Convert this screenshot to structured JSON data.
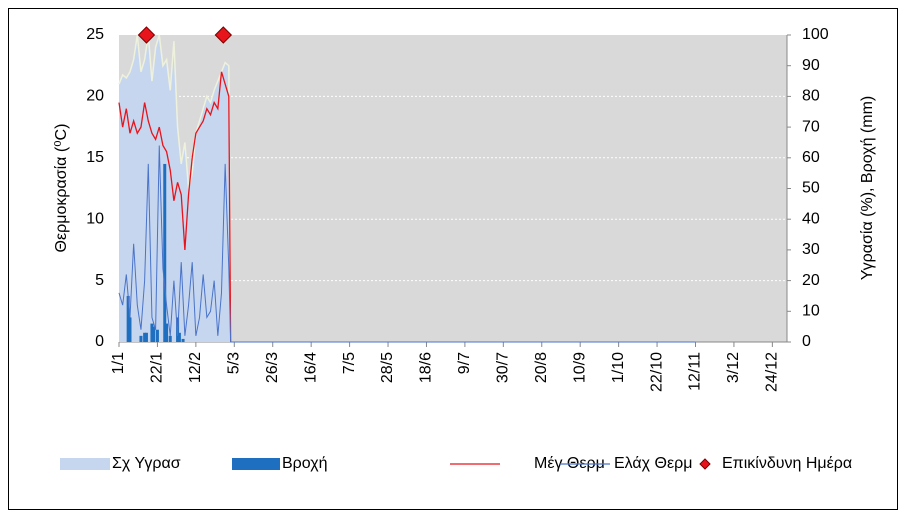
{
  "chart_data": {
    "type": "combo",
    "y_label": "Θερμοκρασία (⁰C)",
    "y2_label": "Υγρασία (%), Βροχή (mm)",
    "xlim": [
      0,
      365
    ],
    "xticks": [
      {
        "value": 0,
        "label": "1/1"
      },
      {
        "value": 21,
        "label": "22/1"
      },
      {
        "value": 42,
        "label": "12/2"
      },
      {
        "value": 63,
        "label": "5/3"
      },
      {
        "value": 84,
        "label": "26/3"
      },
      {
        "value": 105,
        "label": "16/4"
      },
      {
        "value": 126,
        "label": "7/5"
      },
      {
        "value": 147,
        "label": "28/5"
      },
      {
        "value": 168,
        "label": "18/6"
      },
      {
        "value": 189,
        "label": "9/7"
      },
      {
        "value": 210,
        "label": "30/7"
      },
      {
        "value": 231,
        "label": "20/8"
      },
      {
        "value": 252,
        "label": "10/9"
      },
      {
        "value": 273,
        "label": "1/10"
      },
      {
        "value": 294,
        "label": "22/10"
      },
      {
        "value": 315,
        "label": "12/11"
      },
      {
        "value": 336,
        "label": "3/12"
      },
      {
        "value": 357,
        "label": "24/12"
      }
    ],
    "ylim": [
      0,
      25
    ],
    "yticks": [
      0,
      5,
      10,
      15,
      20,
      25
    ],
    "y2lim": [
      0,
      100
    ],
    "y2ticks": [
      0,
      10,
      20,
      30,
      40,
      50,
      60,
      70,
      80,
      90,
      100
    ],
    "grid": true,
    "legend": "bottom",
    "series": [
      {
        "name": "Σχ Υγρασ",
        "kind": "area",
        "axis": "y2",
        "color": "#c6d6ef",
        "x": [
          0,
          2,
          4,
          6,
          8,
          10,
          12,
          14,
          16,
          18,
          20,
          22,
          24,
          26,
          28,
          30,
          32,
          34,
          36,
          38,
          40,
          42,
          44,
          46,
          48,
          50,
          52,
          54,
          56,
          58,
          60,
          61
        ],
        "values": [
          84,
          87,
          86,
          88,
          92,
          100,
          88,
          92,
          100,
          85,
          96,
          100,
          90,
          92,
          82,
          98,
          70,
          58,
          65,
          50,
          55,
          68,
          72,
          76,
          80,
          78,
          82,
          85,
          88,
          91,
          90,
          0
        ]
      },
      {
        "name": "Βροχή",
        "kind": "bar",
        "axis": "y2",
        "color": "#1f6fc0",
        "x": [
          5,
          6,
          12,
          14,
          15,
          18,
          19,
          21,
          25,
          26,
          28,
          32,
          33,
          35
        ],
        "values": [
          15,
          8,
          2,
          3,
          3,
          6,
          5,
          4,
          58,
          6,
          2,
          8,
          3,
          1
        ]
      },
      {
        "name": "Μέγ Θερμ",
        "kind": "line",
        "color": "#e8141b",
        "x": [
          0,
          2,
          4,
          6,
          8,
          10,
          12,
          14,
          16,
          18,
          20,
          22,
          24,
          26,
          28,
          30,
          32,
          34,
          36,
          38,
          40,
          42,
          44,
          46,
          48,
          50,
          52,
          54,
          56,
          58,
          60,
          61
        ],
        "values": [
          19.5,
          17.5,
          19,
          17,
          18,
          17,
          17.5,
          19.5,
          18,
          17,
          16.5,
          17.5,
          16,
          15.5,
          14,
          11.5,
          13,
          12,
          7.5,
          12,
          15,
          17,
          17.5,
          18,
          19,
          18.5,
          19.5,
          19,
          22,
          21,
          20,
          0
        ]
      },
      {
        "name": "Ελάχ Θερμ",
        "kind": "line",
        "color": "#4a74c9",
        "x": [
          0,
          2,
          4,
          6,
          8,
          10,
          12,
          14,
          16,
          18,
          20,
          22,
          24,
          26,
          28,
          30,
          32,
          34,
          36,
          38,
          40,
          42,
          44,
          46,
          48,
          50,
          52,
          54,
          56,
          58,
          60,
          61,
          315
        ],
        "values": [
          4,
          3,
          5.5,
          2,
          8,
          3,
          1,
          5,
          14.5,
          2,
          1,
          16,
          6,
          3,
          0.5,
          5,
          0.5,
          6.5,
          0.5,
          3,
          6.5,
          0.5,
          2,
          5.5,
          2,
          2.5,
          5,
          0.5,
          4,
          14.5,
          6,
          0,
          0
        ]
      },
      {
        "name": "Επικίνδυνη Ημέρα",
        "kind": "marker",
        "color": "#e8141b",
        "x": [
          15,
          57
        ],
        "values": [
          25,
          25
        ]
      }
    ]
  }
}
